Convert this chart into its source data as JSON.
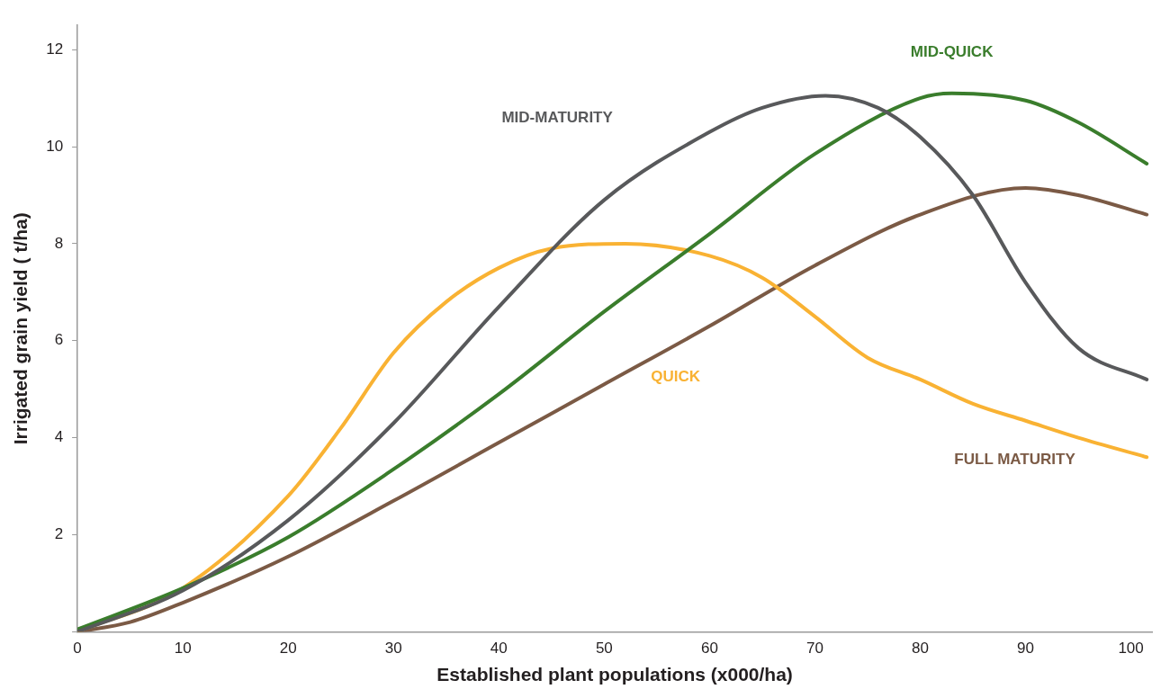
{
  "chart_data": {
    "type": "line",
    "xlabel": "Established plant populations (x000/ha)",
    "ylabel": "Irrigated grain yield ( t/ha)",
    "xlim": [
      0,
      102
    ],
    "xticks": [
      0,
      10,
      20,
      30,
      40,
      50,
      60,
      70,
      80,
      90,
      100
    ],
    "ylim": [
      0,
      12.5
    ],
    "yticks": [
      {
        "value": 0,
        "label": null
      },
      2,
      4,
      6,
      8,
      10,
      12
    ],
    "grid": false,
    "legend": false,
    "marker": "none",
    "line_style": "solid",
    "series": [
      {
        "name": "MID-MATURITY",
        "color": "#58595b",
        "x": [
          0,
          10,
          20,
          30,
          40,
          50,
          60,
          65,
          71,
          76,
          80,
          85,
          90,
          95,
          101.5
        ],
        "values": [
          0,
          0.85,
          2.3,
          4.3,
          6.7,
          8.9,
          10.3,
          10.8,
          11.05,
          10.8,
          10.2,
          9.0,
          7.2,
          5.85,
          5.2
        ]
      },
      {
        "name": "MID-QUICK",
        "color": "#3a7d2c",
        "x": [
          0,
          10,
          20,
          30,
          40,
          50,
          60,
          70,
          80,
          83,
          90,
          95,
          101.5
        ],
        "values": [
          0.05,
          0.9,
          1.95,
          3.35,
          4.9,
          6.6,
          8.2,
          9.85,
          11.0,
          11.1,
          10.95,
          10.5,
          9.65
        ]
      },
      {
        "name": "QUICK",
        "color": "#f9b233",
        "x": [
          0,
          10,
          20,
          25,
          30,
          35,
          40,
          45,
          52,
          60,
          65,
          70,
          75,
          80,
          85,
          90,
          95,
          101.5
        ],
        "values": [
          0,
          0.9,
          2.8,
          4.2,
          5.75,
          6.8,
          7.5,
          7.9,
          8.0,
          7.75,
          7.3,
          6.5,
          5.65,
          5.2,
          4.7,
          4.35,
          4.0,
          3.6
        ]
      },
      {
        "name": "FULL MATURITY",
        "color": "#7b5a45",
        "x": [
          0,
          5,
          10,
          20,
          30,
          40,
          50,
          60,
          70,
          80,
          90,
          95,
          101.5
        ],
        "values": [
          0,
          0.2,
          0.6,
          1.55,
          2.7,
          3.9,
          5.1,
          6.3,
          7.55,
          8.6,
          9.15,
          9.0,
          8.6
        ]
      }
    ]
  }
}
